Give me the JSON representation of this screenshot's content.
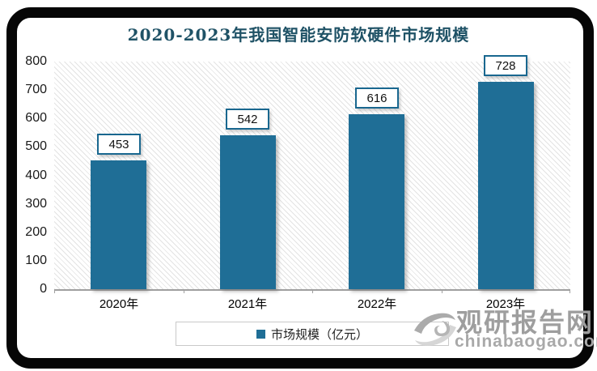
{
  "page": {
    "background": "#ffffff",
    "frame_color": "#060606"
  },
  "chart_data": {
    "type": "bar",
    "title": "2020-2023年我国智能安防软硬件市场规模",
    "categories": [
      "2020年",
      "2021年",
      "2022年",
      "2023年"
    ],
    "series": [
      {
        "name": "市场规模（亿元）",
        "values": [
          453,
          542,
          616,
          728
        ]
      }
    ],
    "data_labels": [
      "453",
      "542",
      "616",
      "728"
    ],
    "ylim": [
      0,
      800
    ],
    "yticks": [
      800,
      700,
      600,
      500,
      400,
      300,
      200,
      100,
      0
    ],
    "grid": false,
    "legend_position": "bottom",
    "bar_color": "#1f6e96",
    "title_color": "#1f5266",
    "plot_background": "diagonal-hatch"
  },
  "legend": {
    "marker_color": "#1f6e96",
    "label": "市场规模（亿元）"
  },
  "watermark": {
    "logo": "swirl-logo",
    "site_name": "观研报告网",
    "site_url": "chinabaogao.com"
  }
}
